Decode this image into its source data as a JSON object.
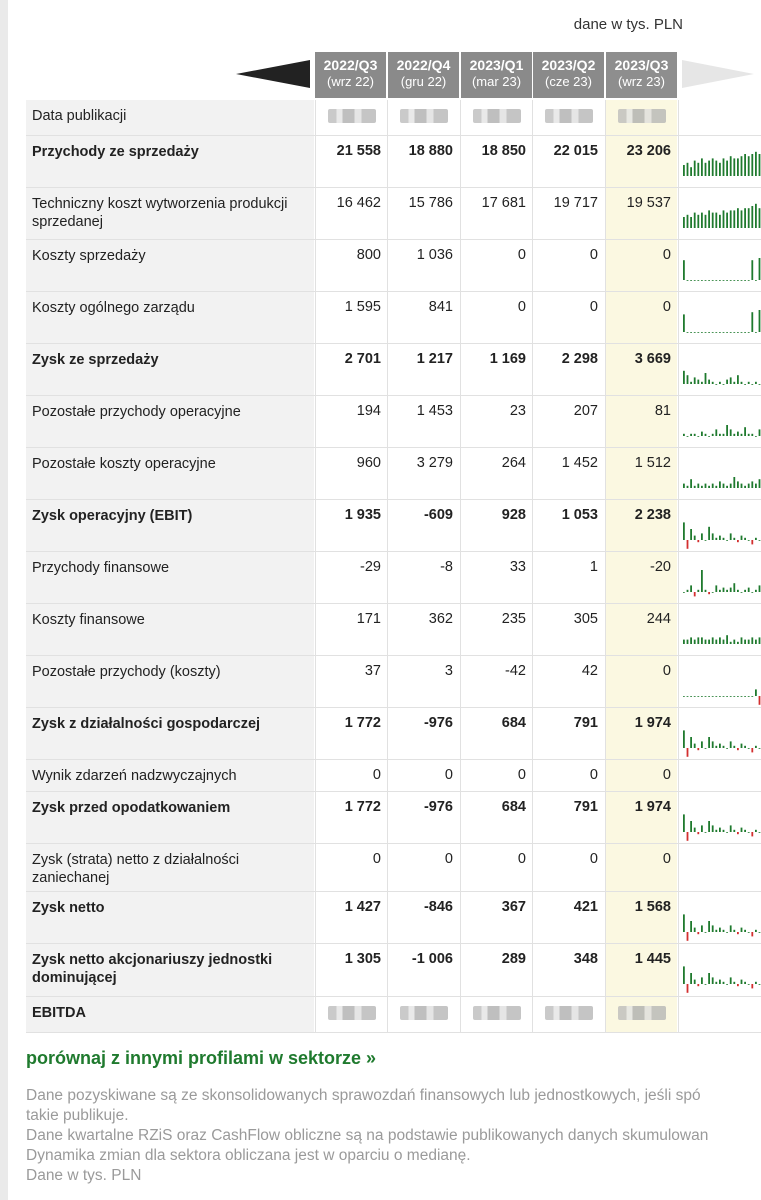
{
  "unit_note": "dane w tys. PLN",
  "columns": [
    {
      "quarter": "2022/Q3",
      "date": "(wrz 22)"
    },
    {
      "quarter": "2022/Q4",
      "date": "(gru 22)"
    },
    {
      "quarter": "2023/Q1",
      "date": "(mar 23)"
    },
    {
      "quarter": "2023/Q2",
      "date": "(cze 23)"
    },
    {
      "quarter": "2023/Q3",
      "date": "(wrz 23)"
    }
  ],
  "colors": {
    "spark_pos": "#1f7a2e",
    "spark_neg": "#d32f2f",
    "highlight": "#fbf8e1",
    "link": "#1f7a2e"
  },
  "rows": [
    {
      "label": "Data publikacji",
      "bold": false,
      "blurred": true,
      "values": [
        "",
        "",
        "",
        "",
        ""
      ],
      "spark": null
    },
    {
      "label": "Przychody ze sprzedaży",
      "bold": true,
      "values": [
        "21 558",
        "18 880",
        "18 850",
        "22 015",
        "23 206"
      ],
      "spark": [
        5,
        6,
        4,
        7,
        6,
        8,
        6,
        7,
        8,
        7,
        6,
        8,
        7,
        9,
        8,
        8,
        9,
        10,
        9,
        10,
        11,
        10
      ]
    },
    {
      "label": "Techniczny koszt wytworzenia produkcji sprzedanej",
      "bold": false,
      "values": [
        "16 462",
        "15 786",
        "17 681",
        "19 717",
        "19 537"
      ],
      "spark": [
        5,
        6,
        5,
        7,
        6,
        7,
        6,
        8,
        7,
        7,
        6,
        8,
        7,
        8,
        8,
        9,
        8,
        9,
        9,
        10,
        11,
        9
      ]
    },
    {
      "label": "Koszty sprzedaży",
      "bold": false,
      "values": [
        "800",
        "1 036",
        "0",
        "0",
        "0"
      ],
      "spark": [
        9,
        0,
        0,
        0,
        0,
        0,
        0,
        0,
        0,
        0,
        0,
        0,
        0,
        0,
        0,
        0,
        0,
        0,
        0,
        9,
        0,
        10
      ]
    },
    {
      "label": "Koszty ogólnego zarządu",
      "bold": false,
      "values": [
        "1 595",
        "841",
        "0",
        "0",
        "0"
      ],
      "spark": [
        8,
        0,
        0,
        0,
        0,
        0,
        0,
        0,
        0,
        0,
        0,
        0,
        0,
        0,
        0,
        0,
        0,
        0,
        0,
        9,
        0,
        10
      ]
    },
    {
      "label": "Zysk ze sprzedaży",
      "bold": true,
      "values": [
        "2 701",
        "1 217",
        "1 169",
        "2 298",
        "3 669"
      ],
      "spark": [
        6,
        4,
        1,
        3,
        2,
        1,
        5,
        2,
        1,
        0,
        1,
        0,
        2,
        3,
        1,
        4,
        1,
        0,
        1,
        0,
        1,
        0
      ]
    },
    {
      "label": "Pozostałe przychody operacyjne",
      "bold": false,
      "values": [
        "194",
        "1 453",
        "23",
        "207",
        "81"
      ],
      "spark": [
        1,
        0,
        1,
        1,
        0,
        2,
        1,
        0,
        1,
        3,
        1,
        1,
        5,
        3,
        1,
        2,
        1,
        4,
        1,
        1,
        0,
        3
      ]
    },
    {
      "label": "Pozostałe koszty operacyjne",
      "bold": false,
      "values": [
        "960",
        "3 279",
        "264",
        "1 452",
        "1 512"
      ],
      "spark": [
        2,
        1,
        4,
        1,
        2,
        1,
        2,
        1,
        2,
        1,
        3,
        2,
        1,
        2,
        5,
        3,
        2,
        1,
        2,
        3,
        2,
        4
      ]
    },
    {
      "label": "Zysk operacyjny (EBIT)",
      "bold": true,
      "values": [
        "1 935",
        "-609",
        "928",
        "1 053",
        "2 238"
      ],
      "spark": [
        8,
        -4,
        5,
        2,
        -1,
        3,
        0,
        6,
        3,
        1,
        2,
        1,
        0,
        3,
        1,
        -1,
        2,
        1,
        0,
        -2,
        1,
        0
      ]
    },
    {
      "label": "Przychody finansowe",
      "bold": false,
      "values": [
        "-29",
        "-8",
        "33",
        "1",
        "-20"
      ],
      "spark": [
        0,
        1,
        3,
        -2,
        1,
        10,
        1,
        -1,
        0,
        3,
        1,
        2,
        1,
        2,
        4,
        1,
        0,
        1,
        2,
        0,
        1,
        3
      ]
    },
    {
      "label": "Koszty finansowe",
      "bold": false,
      "values": [
        "171",
        "362",
        "235",
        "305",
        "244"
      ],
      "spark": [
        2,
        2,
        3,
        2,
        3,
        3,
        2,
        2,
        3,
        2,
        3,
        2,
        4,
        1,
        2,
        1,
        3,
        2,
        2,
        3,
        2,
        3
      ]
    },
    {
      "label": "Pozostałe przychody (koszty)",
      "bold": false,
      "values": [
        "37",
        "3",
        "-42",
        "42",
        "0"
      ],
      "spark": [
        0,
        0,
        0,
        0,
        0,
        0,
        0,
        0,
        0,
        0,
        0,
        0,
        0,
        0,
        0,
        0,
        0,
        0,
        0,
        0,
        3,
        -4
      ]
    },
    {
      "label": "Zysk z działalności gospodarczej",
      "bold": true,
      "values": [
        "1 772",
        "-976",
        "684",
        "791",
        "1 974"
      ],
      "spark": [
        8,
        -4,
        5,
        2,
        -1,
        3,
        0,
        5,
        3,
        1,
        2,
        1,
        0,
        3,
        1,
        -1,
        2,
        1,
        0,
        -2,
        1,
        0
      ]
    },
    {
      "label": "Wynik zdarzeń nadzwyczajnych",
      "bold": false,
      "values": [
        "0",
        "0",
        "0",
        "0",
        "0"
      ],
      "spark": null
    },
    {
      "label": "Zysk przed opodatkowaniem",
      "bold": true,
      "values": [
        "1 772",
        "-976",
        "684",
        "791",
        "1 974"
      ],
      "spark": [
        8,
        -4,
        5,
        2,
        -1,
        3,
        0,
        5,
        3,
        1,
        2,
        1,
        0,
        3,
        1,
        -1,
        2,
        1,
        0,
        -2,
        1,
        0
      ]
    },
    {
      "label": "Zysk (strata) netto z działalności zaniechanej",
      "bold": false,
      "values": [
        "0",
        "0",
        "0",
        "0",
        "0"
      ],
      "spark": null
    },
    {
      "label": "Zysk netto",
      "bold": true,
      "values": [
        "1 427",
        "-846",
        "367",
        "421",
        "1 568"
      ],
      "spark": [
        8,
        -4,
        5,
        2,
        -1,
        3,
        0,
        5,
        3,
        1,
        2,
        1,
        0,
        3,
        1,
        -1,
        2,
        1,
        0,
        -2,
        1,
        0
      ]
    },
    {
      "label": "Zysk netto akcjonariuszy jednostki dominującej",
      "bold": true,
      "values": [
        "1 305",
        "-1 006",
        "289",
        "348",
        "1 445"
      ],
      "spark": [
        8,
        -4,
        5,
        2,
        -1,
        3,
        0,
        5,
        3,
        1,
        2,
        1,
        0,
        3,
        1,
        -1,
        2,
        1,
        0,
        -2,
        1,
        0
      ]
    },
    {
      "label": "EBITDA",
      "bold": true,
      "blurred": true,
      "values": [
        "",
        "",
        "",
        "",
        ""
      ],
      "spark": null
    }
  ],
  "compare_link": "porównaj z innymi profilami w sektorze »",
  "notes": [
    "Dane pozyskiwane są ze skonsolidowanych sprawozdań finansowych lub jednostkowych, jeśli spó",
    "takie publikuje.",
    "Dane kwartalne RZiS oraz CashFlow obliczne są na podstawie publikowanych danych skumulowan",
    "Dynamika zmian dla sektora obliczana jest w oparciu o medianę.",
    "Dane w tys. PLN"
  ]
}
